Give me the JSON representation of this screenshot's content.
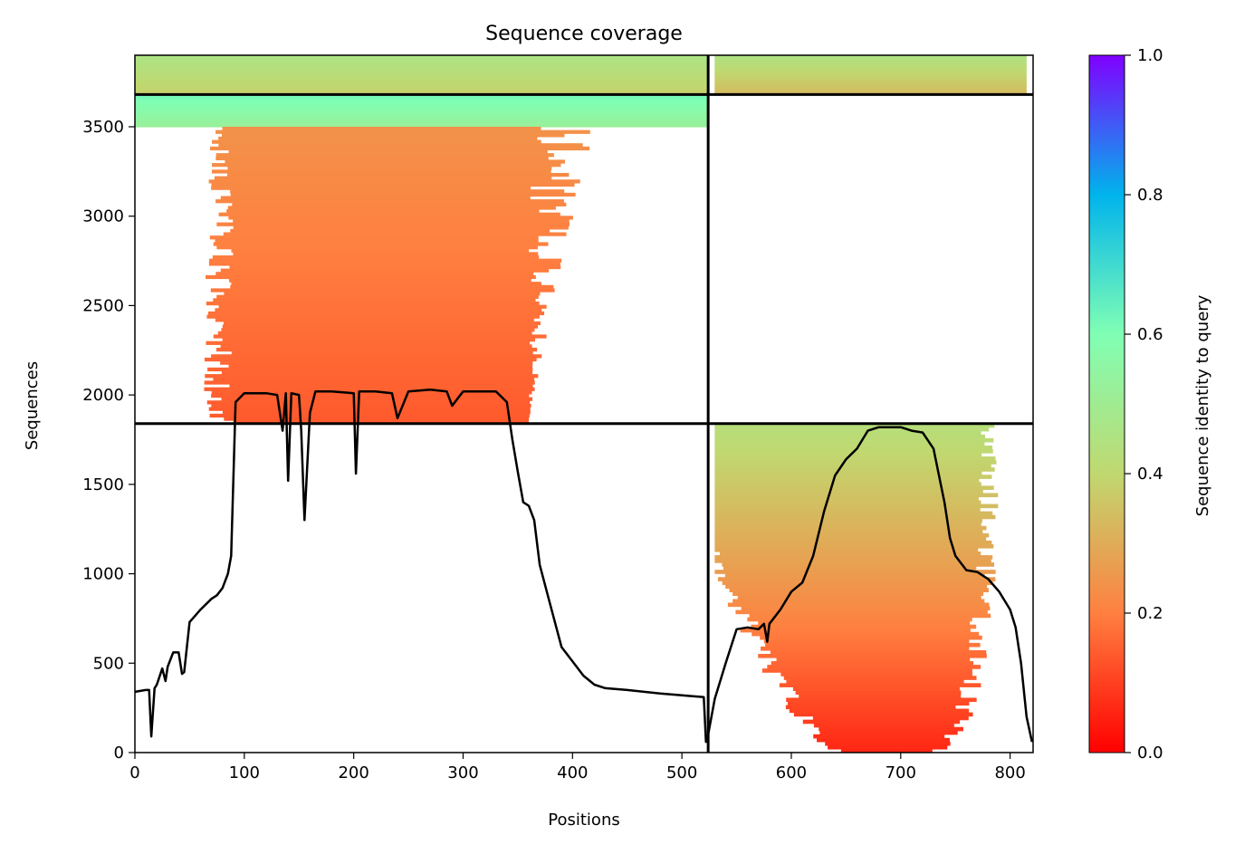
{
  "chart_data": {
    "type": "heatmap",
    "title": "Sequence coverage",
    "xlabel": "Positions",
    "ylabel": "Sequences",
    "xlim": [
      0,
      821
    ],
    "ylim": [
      0,
      3900
    ],
    "x_ticks": [
      0,
      100,
      200,
      300,
      400,
      500,
      600,
      700,
      800
    ],
    "y_ticks": [
      0,
      500,
      1000,
      1500,
      2000,
      2500,
      3000,
      3500
    ],
    "colorbar": {
      "label": "Sequence identity to query",
      "min": 0.0,
      "max": 1.0,
      "ticks": [
        "0.0",
        "0.2",
        "0.4",
        "0.6",
        "0.8",
        "1.0"
      ],
      "colormap": "rainbow_r",
      "colors": [
        "#ff0000",
        "#ff8040",
        "#c0d870",
        "#80ffb4",
        "#00b4ec",
        "#8000ff"
      ]
    },
    "line_color": "#000000",
    "separators": {
      "vertical_x": 524,
      "horizontal_y": [
        1840,
        3680
      ]
    },
    "blocks": [
      {
        "name": "block-a-top",
        "x": [
          0,
          524
        ],
        "y": [
          3680,
          3900
        ],
        "identity": [
          0.38,
          0.46
        ],
        "span": [
          0,
          524
        ]
      },
      {
        "name": "block-b-top",
        "x": [
          524,
          821
        ],
        "y": [
          3680,
          3900
        ],
        "identity": [
          0.33,
          0.45
        ],
        "span": [
          530,
          815
        ]
      },
      {
        "name": "block-a-mid-high",
        "x": [
          0,
          524
        ],
        "y": [
          3500,
          3680
        ],
        "identity": [
          0.52,
          0.62
        ],
        "span": [
          0,
          524
        ]
      },
      {
        "name": "block-a-mid",
        "x": [
          0,
          524
        ],
        "y": [
          1840,
          3500
        ],
        "identity": [
          0.14,
          0.24
        ],
        "span": [
          90,
          360
        ]
      },
      {
        "name": "block-b-bottom",
        "x": [
          524,
          821
        ],
        "y": [
          0,
          1840
        ],
        "identity": [
          0.06,
          0.43
        ],
        "span": [
          530,
          815
        ]
      }
    ],
    "coverage": {
      "x": [
        0,
        10,
        13,
        15,
        18,
        20,
        25,
        28,
        30,
        35,
        40,
        43,
        45,
        50,
        60,
        70,
        75,
        80,
        85,
        88,
        92,
        100,
        110,
        120,
        130,
        135,
        138,
        140,
        143,
        150,
        152,
        155,
        160,
        165,
        180,
        200,
        202,
        205,
        210,
        220,
        235,
        240,
        250,
        270,
        285,
        290,
        300,
        310,
        330,
        340,
        345,
        350,
        355,
        360,
        365,
        370,
        380,
        390,
        400,
        410,
        420,
        430,
        450,
        480,
        500,
        520,
        522,
        524,
        530,
        540,
        550,
        560,
        570,
        575,
        578,
        580,
        590,
        600,
        610,
        620,
        630,
        640,
        650,
        660,
        670,
        680,
        700,
        710,
        720,
        730,
        740,
        745,
        750,
        760,
        770,
        780,
        790,
        800,
        805,
        810,
        815,
        820
      ],
      "y": [
        340,
        350,
        350,
        90,
        360,
        380,
        470,
        400,
        480,
        560,
        560,
        440,
        450,
        730,
        800,
        860,
        880,
        920,
        1000,
        1100,
        1960,
        2010,
        2010,
        2010,
        2000,
        1800,
        2010,
        1520,
        2010,
        2000,
        1800,
        1300,
        1900,
        2020,
        2020,
        2010,
        1560,
        2020,
        2020,
        2020,
        2010,
        1870,
        2020,
        2030,
        2020,
        1940,
        2020,
        2020,
        2020,
        1960,
        1750,
        1570,
        1400,
        1380,
        1300,
        1050,
        820,
        590,
        510,
        430,
        380,
        360,
        350,
        330,
        320,
        310,
        60,
        100,
        300,
        500,
        690,
        700,
        690,
        720,
        620,
        720,
        800,
        900,
        950,
        1100,
        1350,
        1550,
        1640,
        1700,
        1800,
        1820,
        1820,
        1800,
        1790,
        1700,
        1400,
        1200,
        1100,
        1020,
        1010,
        970,
        900,
        800,
        700,
        500,
        200,
        60
      ]
    }
  }
}
